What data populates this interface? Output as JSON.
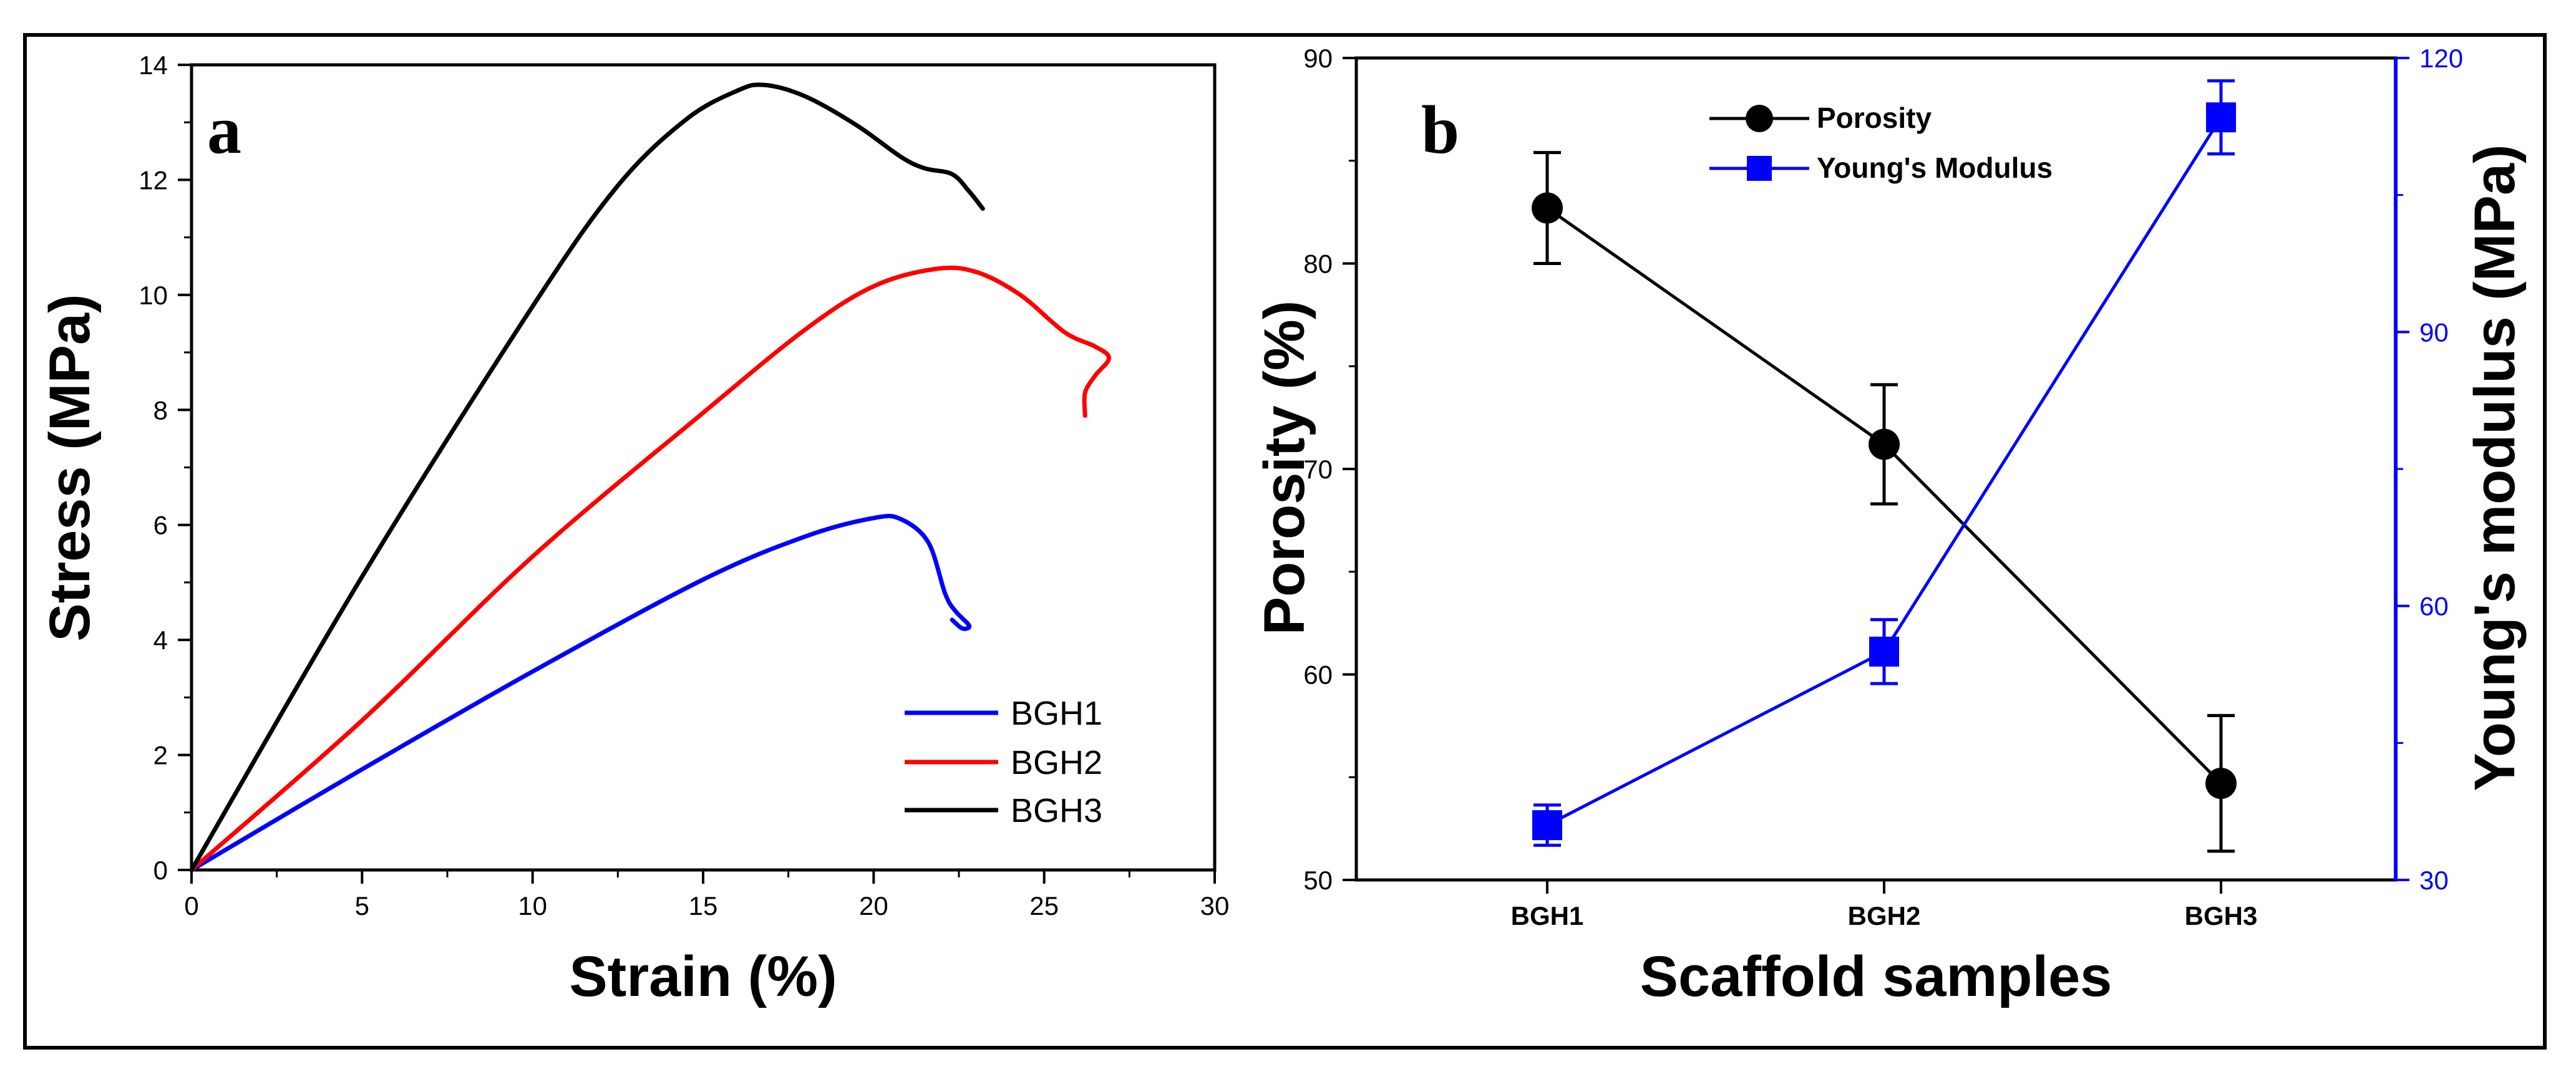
{
  "chart_data": [
    {
      "type": "line",
      "panel": "a",
      "xlabel": "Strain (%)",
      "ylabel": "Stress (MPa)",
      "xlim": [
        0,
        30
      ],
      "ylim": [
        0,
        14
      ],
      "xticks": [
        0,
        5,
        10,
        15,
        20,
        25,
        30
      ],
      "yticks": [
        0,
        2,
        4,
        6,
        8,
        10,
        12,
        14
      ],
      "legend_position": "bottom-right",
      "series": [
        {
          "name": "BGH1",
          "color": "#0000ff",
          "x": [
            0,
            5,
            10,
            15,
            18,
            20,
            20.8,
            21.6,
            22.1,
            22.4,
            22.8,
            22.6,
            22.3
          ],
          "y": [
            0,
            1.75,
            3.45,
            5.05,
            5.8,
            6.12,
            6.1,
            5.7,
            4.8,
            4.5,
            4.25,
            4.2,
            4.35
          ]
        },
        {
          "name": "BGH2",
          "color": "#ff0000",
          "x": [
            0,
            5,
            10,
            15,
            18,
            20,
            21.8,
            23,
            24.3,
            25.6,
            26.5,
            26.9,
            26.5,
            26.2,
            26.2
          ],
          "y": [
            0,
            2.6,
            5.45,
            7.95,
            9.4,
            10.15,
            10.45,
            10.4,
            10,
            9.35,
            9.1,
            8.9,
            8.6,
            8.3,
            7.9
          ]
        },
        {
          "name": "BGH3",
          "color": "#000000",
          "x": [
            0,
            5,
            10,
            12.5,
            14.5,
            16,
            16.8,
            18,
            19.5,
            20.8,
            21.5,
            22.3,
            22.8,
            23.2
          ],
          "y": [
            0,
            5.1,
            9.8,
            11.9,
            13.05,
            13.55,
            13.65,
            13.45,
            12.95,
            12.4,
            12.2,
            12.1,
            11.8,
            11.5
          ]
        }
      ]
    },
    {
      "type": "line",
      "panel": "b",
      "xlabel": "Scaffold samples",
      "ylabel": "Porosity (%)",
      "y2label": "Young's modulus (MPa)",
      "categories": [
        "BGH1",
        "BGH2",
        "BGH3"
      ],
      "ylim": [
        50,
        90
      ],
      "yticks": [
        50,
        60,
        70,
        80,
        90
      ],
      "y2lim": [
        30,
        120
      ],
      "y2ticks": [
        30,
        60,
        90,
        120
      ],
      "legend_position": "top-center",
      "series": [
        {
          "name": "Porosity",
          "axis": "left",
          "color": "#000000",
          "marker": "circle",
          "values": [
            82.7,
            71.2,
            54.7
          ],
          "errors": [
            2.7,
            2.9,
            3.3
          ]
        },
        {
          "name": "Young's Modulus",
          "axis": "right",
          "color": "#0000ff",
          "marker": "square",
          "values": [
            36,
            55,
            113.5
          ],
          "errors": [
            2.2,
            3.5,
            4.0
          ]
        }
      ]
    }
  ]
}
